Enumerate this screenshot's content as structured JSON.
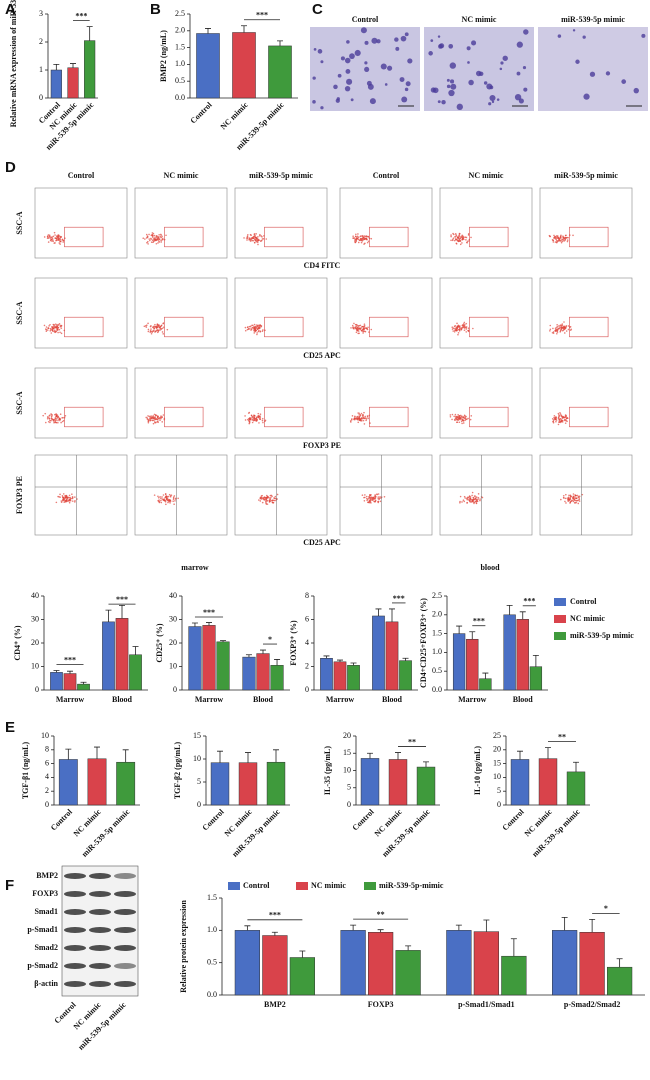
{
  "panel_letters": [
    "A",
    "B",
    "C",
    "D",
    "E",
    "F"
  ],
  "panel_c": {
    "labels": [
      "Control",
      "NC mimic",
      "miR-539-5p mimic"
    ]
  },
  "panel_d": {
    "column_labels": [
      "Control",
      "NC mimic",
      "miR-539-5p mimic",
      "Control",
      "NC mimic",
      "miR-539-5p mimic"
    ],
    "row_y_labels": [
      "SSC-A",
      "SSC-A",
      "SSC-A",
      "FOXP3 PE"
    ],
    "row_x_labels": [
      "CD4 FITC",
      "CD25 APC",
      "FOXP3 PE",
      "CD25 APC"
    ],
    "group_labels": [
      "marrow",
      "blood"
    ]
  },
  "panel_f": {
    "blot_labels": [
      "BMP2",
      "FOXP3",
      "Smad1",
      "p-Smad1",
      "Smad2",
      "p-Smad2",
      "β-actin"
    ],
    "lane_labels": [
      "Control",
      "NC mimic",
      "miR-539-5p mimic"
    ]
  },
  "chart_data": [
    {
      "type": "bar",
      "ylabel": "Relative mRNA expression of miR-539-5p",
      "categories": [
        "Control",
        "NC mimic",
        "miR-539-5p mimic"
      ],
      "values": [
        1.0,
        1.08,
        2.05
      ],
      "errors": [
        0.2,
        0.15,
        0.5
      ],
      "colors": [
        "#4a6fc4",
        "#d9434b",
        "#3f9a3c"
      ],
      "ylim": [
        0,
        3
      ],
      "yticks": [
        0,
        1,
        2,
        3
      ],
      "annotations": [
        {
          "text": "***",
          "between": [
            "NC mimic",
            "miR-539-5p mimic"
          ]
        }
      ]
    },
    {
      "type": "bar",
      "ylabel": "BMP2 (ng/mL)",
      "categories": [
        "Control",
        "NC mimic",
        "miR-539-5p mimic"
      ],
      "values": [
        1.92,
        1.95,
        1.55
      ],
      "errors": [
        0.15,
        0.2,
        0.15
      ],
      "colors": [
        "#4a6fc4",
        "#d9434b",
        "#3f9a3c"
      ],
      "ylim": [
        0,
        2.5
      ],
      "yticks": [
        {
          "value": 0,
          "label": "0.0"
        },
        {
          "value": 0.5,
          "label": "0.5"
        },
        {
          "value": 1,
          "label": "1.0"
        },
        {
          "value": 1.5,
          "label": "1.5"
        },
        {
          "value": 2,
          "label": "2.0"
        },
        {
          "value": 2.5,
          "label": "2.5"
        }
      ],
      "annotations": [
        {
          "text": "***",
          "between": [
            "NC mimic",
            "miR-539-5p mimic"
          ]
        }
      ]
    },
    {
      "type": "grouped_bar",
      "ylabel": "CD4⁺ (%)",
      "categories": [
        "Marrow",
        "Blood"
      ],
      "series": [
        {
          "name": "Control",
          "color": "#4a6fc4",
          "values": [
            7.5,
            29
          ],
          "errors": [
            0.8,
            5
          ]
        },
        {
          "name": "NC mimic",
          "color": "#d9434b",
          "values": [
            7,
            30.5
          ],
          "errors": [
            1,
            5.5
          ]
        },
        {
          "name": "miR-539-5p mimic",
          "color": "#3f9a3c",
          "values": [
            2.5,
            15
          ],
          "errors": [
            0.8,
            3.5
          ]
        }
      ],
      "ylim": [
        0,
        40
      ],
      "yticks": [
        0,
        10,
        20,
        30,
        40
      ],
      "annotations": [
        {
          "text": "***",
          "category": "Marrow",
          "between": [
            "Control",
            "miR-539-5p mimic"
          ]
        },
        {
          "text": "***",
          "category": "Blood",
          "between": [
            "Control",
            "miR-539-5p mimic"
          ]
        }
      ]
    },
    {
      "type": "grouped_bar",
      "ylabel": "CD25⁺ (%)",
      "categories": [
        "Marrow",
        "Blood"
      ],
      "series": [
        {
          "name": "Control",
          "color": "#4a6fc4",
          "values": [
            27,
            14
          ],
          "errors": [
            1.5,
            1
          ]
        },
        {
          "name": "NC mimic",
          "color": "#d9434b",
          "values": [
            27.5,
            15.5
          ],
          "errors": [
            1.2,
            1.5
          ]
        },
        {
          "name": "miR-539-5p mimic",
          "color": "#3f9a3c",
          "values": [
            20.5,
            10.5
          ],
          "errors": [
            0.5,
            2.5
          ]
        }
      ],
      "ylim": [
        0,
        40
      ],
      "yticks": [
        0,
        10,
        20,
        30,
        40
      ],
      "annotations": [
        {
          "text": "***",
          "category": "Marrow",
          "between": [
            "Control",
            "miR-539-5p mimic"
          ]
        },
        {
          "text": "*",
          "category": "Blood",
          "between": [
            "NC mimic",
            "miR-539-5p mimic"
          ]
        }
      ]
    },
    {
      "type": "grouped_bar",
      "ylabel": "FOXP3⁺ (%)",
      "categories": [
        "Marrow",
        "Blood"
      ],
      "series": [
        {
          "name": "Control",
          "color": "#4a6fc4",
          "values": [
            2.7,
            6.3
          ],
          "errors": [
            0.2,
            0.6
          ]
        },
        {
          "name": "NC mimic",
          "color": "#d9434b",
          "values": [
            2.4,
            5.8
          ],
          "errors": [
            0.15,
            1.1
          ]
        },
        {
          "name": "miR-539-5p mimic",
          "color": "#3f9a3c",
          "values": [
            2.1,
            2.5
          ],
          "errors": [
            0.2,
            0.2
          ]
        }
      ],
      "ylim": [
        0,
        8
      ],
      "yticks": [
        0,
        2,
        4,
        6,
        8
      ],
      "annotations": [
        {
          "text": "***",
          "category": "Blood",
          "between": [
            "NC mimic",
            "miR-539-5p mimic"
          ]
        }
      ]
    },
    {
      "type": "grouped_bar",
      "ylabel": "CD4+CD25+FOXP3+ (%)",
      "categories": [
        "Marrow",
        "Blood"
      ],
      "legend": "right",
      "series": [
        {
          "name": "Control",
          "color": "#4a6fc4",
          "values": [
            1.5,
            2.0
          ],
          "errors": [
            0.2,
            0.25
          ]
        },
        {
          "name": "NC mimic",
          "color": "#d9434b",
          "values": [
            1.35,
            1.88
          ],
          "errors": [
            0.2,
            0.2
          ]
        },
        {
          "name": "miR-539-5p mimic",
          "color": "#3f9a3c",
          "values": [
            0.3,
            0.62
          ],
          "errors": [
            0.15,
            0.3
          ]
        }
      ],
      "ylim": [
        0,
        2.5
      ],
      "yticks": [
        {
          "value": 0,
          "label": "0.0"
        },
        {
          "value": 0.5,
          "label": "0.5"
        },
        {
          "value": 1,
          "label": "1.0"
        },
        {
          "value": 1.5,
          "label": "1.5"
        },
        {
          "value": 2,
          "label": "2.0"
        },
        {
          "value": 2.5,
          "label": "2.5"
        }
      ],
      "annotations": [
        {
          "text": "***",
          "category": "Marrow",
          "between": [
            "NC mimic",
            "miR-539-5p mimic"
          ]
        },
        {
          "text": "***",
          "category": "Blood",
          "between": [
            "NC mimic",
            "miR-539-5p mimic"
          ]
        }
      ]
    },
    {
      "type": "bar",
      "ylabel": "TGF-β1 (ng/mL)",
      "categories": [
        "Control",
        "NC mimic",
        "miR-539-5p mimic"
      ],
      "values": [
        6.6,
        6.7,
        6.2
      ],
      "errors": [
        1.5,
        1.7,
        1.8
      ],
      "colors": [
        "#4a6fc4",
        "#d9434b",
        "#3f9a3c"
      ],
      "ylim": [
        0,
        10
      ],
      "yticks": [
        0,
        2,
        4,
        6,
        8,
        10
      ],
      "annotations": []
    },
    {
      "type": "bar",
      "ylabel": "TGF-β2 (pg/mL)",
      "categories": [
        "Control",
        "NC mimic",
        "miR-539-5p mimic"
      ],
      "values": [
        9.2,
        9.2,
        9.3
      ],
      "errors": [
        2.5,
        2.2,
        2.7
      ],
      "colors": [
        "#4a6fc4",
        "#d9434b",
        "#3f9a3c"
      ],
      "ylim": [
        0,
        15
      ],
      "yticks": [
        0,
        5,
        10,
        15
      ],
      "annotations": []
    },
    {
      "type": "bar",
      "ylabel": "IL-35 (pg/mL)",
      "categories": [
        "Control",
        "NC mimic",
        "miR-539-5p mimic"
      ],
      "values": [
        13.5,
        13.2,
        11
      ],
      "errors": [
        1.5,
        2,
        1.5
      ],
      "colors": [
        "#4a6fc4",
        "#d9434b",
        "#3f9a3c"
      ],
      "ylim": [
        0,
        20
      ],
      "yticks": [
        0,
        5,
        10,
        15,
        20
      ],
      "annotations": [
        {
          "text": "**",
          "between": [
            "NC mimic",
            "miR-539-5p mimic"
          ]
        }
      ]
    },
    {
      "type": "bar",
      "ylabel": "IL-10 (pg/mL)",
      "categories": [
        "Control",
        "NC mimic",
        "miR-539-5p mimic"
      ],
      "values": [
        16.5,
        16.8,
        12
      ],
      "errors": [
        3,
        4,
        3.5
      ],
      "colors": [
        "#4a6fc4",
        "#d9434b",
        "#3f9a3c"
      ],
      "ylim": [
        0,
        25
      ],
      "yticks": [
        0,
        5,
        10,
        15,
        20,
        25
      ],
      "annotations": [
        {
          "text": "**",
          "between": [
            "NC mimic",
            "miR-539-5p mimic"
          ]
        }
      ]
    },
    {
      "type": "grouped_bar",
      "ylabel": "Relative protein expression",
      "categories": [
        "BMP2",
        "FOXP3",
        "p-Smad1/Smad1",
        "p-Smad2/Smad2"
      ],
      "legend": "top",
      "series": [
        {
          "name": "Control",
          "color": "#4a6fc4",
          "values": [
            1.0,
            1.0,
            1.0,
            1.0
          ],
          "errors": [
            0.07,
            0.08,
            0.08,
            0.2
          ]
        },
        {
          "name": "NC mimic",
          "color": "#d9434b",
          "values": [
            0.92,
            0.97,
            0.98,
            0.97
          ],
          "errors": [
            0.05,
            0.04,
            0.18,
            0.2
          ]
        },
        {
          "name": "miR-539-5p-mimic",
          "color": "#3f9a3c",
          "values": [
            0.58,
            0.69,
            0.6,
            0.43
          ],
          "errors": [
            0.1,
            0.07,
            0.27,
            0.13
          ]
        }
      ],
      "ylim": [
        0,
        1.5
      ],
      "yticks": [
        {
          "value": 0,
          "label": "0.0"
        },
        {
          "value": 0.5,
          "label": "0.5"
        },
        {
          "value": 1,
          "label": "1.0"
        },
        {
          "value": 1.5,
          "label": "1.5"
        }
      ],
      "annotations": [
        {
          "text": "***",
          "category": "BMP2",
          "between": [
            "Control",
            "miR-539-5p-mimic"
          ]
        },
        {
          "text": "**",
          "category": "FOXP3",
          "between": [
            "Control",
            "miR-539-5p-mimic"
          ]
        },
        {
          "text": "*",
          "category": "p-Smad2/Smad2",
          "between": [
            "NC mimic",
            "miR-539-5p-mimic"
          ]
        }
      ]
    }
  ]
}
